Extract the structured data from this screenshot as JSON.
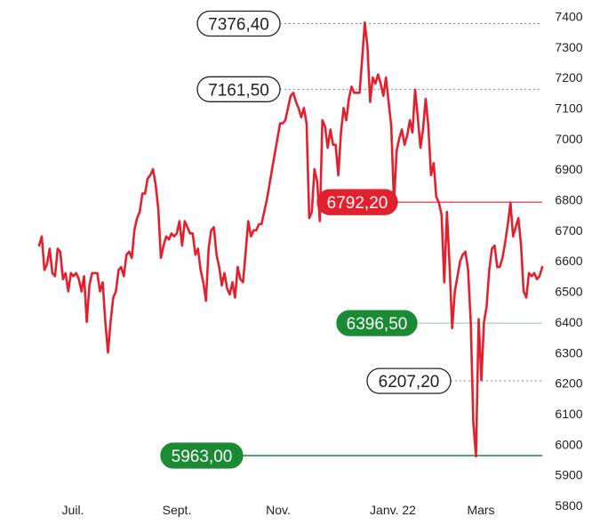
{
  "chart_data": {
    "type": "line",
    "title": "",
    "xlabel": "",
    "ylabel": "",
    "ylim": [
      5800,
      7400
    ],
    "y_ticks": [
      "7400",
      "7300",
      "7200",
      "7100",
      "7000",
      "6900",
      "6800",
      "6700",
      "6600",
      "6500",
      "6400",
      "6300",
      "6200",
      "6100",
      "6000",
      "5900",
      "5800"
    ],
    "x_ticks": [
      "Juil.",
      "Sept.",
      "Nov.",
      "Janv. 22",
      "Mars"
    ],
    "grid": false,
    "colors": {
      "line": "#e2202e",
      "red_pill": "#e2202e",
      "green_pill": "#1a8a35",
      "axis_text": "#222222",
      "guide": "#888888"
    },
    "series": [
      {
        "values": [
          6650,
          6680,
          6570,
          6590,
          6640,
          6560,
          6550,
          6640,
          6630,
          6540,
          6560,
          6500,
          6560,
          6550,
          6560,
          6540,
          6500,
          6550,
          6400,
          6520,
          6560,
          6560,
          6560,
          6500,
          6530,
          6400,
          6300,
          6400,
          6480,
          6500,
          6570,
          6580,
          6550,
          6620,
          6630,
          6610,
          6700,
          6740,
          6760,
          6820,
          6820,
          6870,
          6880,
          6900,
          6850,
          6770,
          6610,
          6650,
          6680,
          6670,
          6690,
          6680,
          6690,
          6730,
          6650,
          6730,
          6710,
          6690,
          6690,
          6620,
          6640,
          6570,
          6530,
          6470,
          6640,
          6700,
          6710,
          6620,
          6580,
          6520,
          6560,
          6510,
          6490,
          6530,
          6480,
          6580,
          6540,
          6530,
          6630,
          6730,
          6680,
          6700,
          6700,
          6720,
          6720,
          6760,
          6800,
          6850,
          6900,
          6950,
          7000,
          7050,
          7050,
          7060,
          7100,
          7140,
          7150,
          7120,
          7100,
          7070,
          7100,
          7050,
          6740,
          6760,
          6900,
          6860,
          6730,
          7060,
          7040,
          6970,
          7030,
          6980,
          6980,
          6880,
          7020,
          7100,
          7060,
          7130,
          7170,
          7150,
          7150,
          7150,
          7260,
          7380,
          7300,
          7120,
          7200,
          7180,
          7210,
          7180,
          7140,
          7200,
          7120,
          7040,
          6790,
          6960,
          7000,
          7030,
          6980,
          7010,
          7060,
          7020,
          7160,
          7070,
          6970,
          7030,
          7130,
          7040,
          6880,
          6920,
          6810,
          6790,
          6750,
          6530,
          6760,
          6590,
          6380,
          6500,
          6550,
          6600,
          6620,
          6630,
          6570,
          6400,
          6070,
          5960,
          6410,
          6210,
          6400,
          6450,
          6570,
          6640,
          6650,
          6580,
          6580,
          6610,
          6660,
          6720,
          6790,
          6680,
          6710,
          6740,
          6650,
          6500,
          6480,
          6560,
          6550,
          6560,
          6540,
          6550,
          6580
        ]
      }
    ],
    "annotations": [
      {
        "label": "7376,40",
        "value": 7376.4,
        "style": "outline"
      },
      {
        "label": "7161,50",
        "value": 7161.5,
        "style": "outline"
      },
      {
        "label": "6792,20",
        "value": 6792.2,
        "style": "red"
      },
      {
        "label": "6396,50",
        "value": 6396.5,
        "style": "green"
      },
      {
        "label": "6207,20",
        "value": 6207.2,
        "style": "outline"
      },
      {
        "label": "5963,00",
        "value": 5963.0,
        "style": "green"
      }
    ]
  }
}
